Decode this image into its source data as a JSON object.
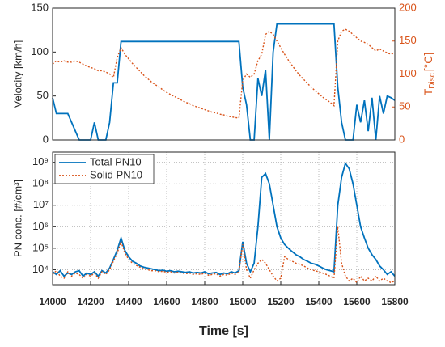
{
  "chart_data": [
    {
      "type": "line",
      "ylabel": "Velocity [km/h]",
      "y2label": "T",
      "y2label_sub": "Disc",
      "y2label_unit": "[°C]",
      "x": [
        14000,
        14020,
        14040,
        14060,
        14080,
        14100,
        14120,
        14140,
        14160,
        14180,
        14200,
        14220,
        14240,
        14260,
        14280,
        14300,
        14320,
        14340,
        14360,
        14380,
        14400,
        14420,
        14440,
        14460,
        14480,
        14500,
        14520,
        14540,
        14560,
        14580,
        14600,
        14620,
        14640,
        14660,
        14680,
        14700,
        14720,
        14740,
        14760,
        14780,
        14800,
        14820,
        14840,
        14860,
        14880,
        14900,
        14920,
        14940,
        14960,
        14980,
        15000,
        15020,
        15040,
        15060,
        15080,
        15100,
        15120,
        15140,
        15160,
        15180,
        15200,
        15220,
        15240,
        15260,
        15280,
        15300,
        15320,
        15340,
        15360,
        15380,
        15400,
        15420,
        15440,
        15460,
        15480,
        15500,
        15520,
        15540,
        15560,
        15580,
        15600,
        15620,
        15640,
        15660,
        15680,
        15700,
        15720,
        15740,
        15760,
        15780,
        15800
      ],
      "xlim": [
        14000,
        15800
      ],
      "ylim": [
        0,
        150
      ],
      "yticks": [
        0,
        50,
        100,
        150
      ],
      "y2lim": [
        0,
        200
      ],
      "y2ticks": [
        0,
        50,
        100,
        150,
        200
      ],
      "grid": false,
      "series": [
        {
          "name": "Velocity",
          "color": "#0072BD",
          "dash": false,
          "values": [
            48,
            30,
            30,
            30,
            30,
            20,
            10,
            0,
            0,
            0,
            0,
            20,
            0,
            0,
            0,
            20,
            65,
            65,
            112,
            112,
            112,
            112,
            112,
            112,
            112,
            112,
            112,
            112,
            112,
            112,
            112,
            112,
            112,
            112,
            112,
            112,
            112,
            112,
            112,
            112,
            112,
            112,
            112,
            112,
            112,
            112,
            112,
            112,
            112,
            112,
            60,
            40,
            0,
            0,
            70,
            50,
            80,
            0,
            100,
            132,
            132,
            132,
            132,
            132,
            132,
            132,
            132,
            132,
            132,
            132,
            132,
            132,
            132,
            132,
            132,
            60,
            20,
            0,
            0,
            0,
            40,
            20,
            45,
            10,
            48,
            0,
            50,
            30,
            50,
            48,
            45
          ]
        },
        {
          "name": "Disc temperature",
          "color": "#D95319",
          "dash": true,
          "axis": "y2",
          "values": [
            115,
            120,
            118,
            120,
            118,
            118,
            120,
            118,
            115,
            112,
            110,
            108,
            105,
            105,
            103,
            100,
            95,
            125,
            140,
            130,
            123,
            116,
            110,
            104,
            98,
            93,
            88,
            84,
            80,
            76,
            72,
            69,
            66,
            63,
            60,
            57,
            55,
            52,
            50,
            48,
            46,
            44,
            42,
            41,
            39,
            38,
            36,
            35,
            34,
            33,
            90,
            100,
            95,
            100,
            120,
            130,
            160,
            165,
            160,
            150,
            140,
            130,
            121,
            113,
            105,
            98,
            92,
            86,
            80,
            75,
            70,
            65,
            61,
            57,
            52,
            150,
            165,
            168,
            165,
            160,
            155,
            150,
            148,
            145,
            140,
            135,
            138,
            135,
            132,
            130,
            132
          ]
        }
      ]
    },
    {
      "type": "line",
      "ylabel": "PN conc. [#/cm³]",
      "xlabel": "Time [s]",
      "x": [
        14000,
        14020,
        14040,
        14060,
        14080,
        14100,
        14120,
        14140,
        14160,
        14180,
        14200,
        14220,
        14240,
        14260,
        14280,
        14300,
        14320,
        14340,
        14360,
        14380,
        14400,
        14420,
        14440,
        14460,
        14480,
        14500,
        14520,
        14540,
        14560,
        14580,
        14600,
        14620,
        14640,
        14660,
        14680,
        14700,
        14720,
        14740,
        14760,
        14780,
        14800,
        14820,
        14840,
        14860,
        14880,
        14900,
        14920,
        14940,
        14960,
        14980,
        15000,
        15020,
        15040,
        15060,
        15080,
        15100,
        15120,
        15140,
        15160,
        15180,
        15200,
        15220,
        15240,
        15260,
        15280,
        15300,
        15320,
        15340,
        15360,
        15380,
        15400,
        15420,
        15440,
        15460,
        15480,
        15500,
        15520,
        15540,
        15560,
        15580,
        15600,
        15620,
        15640,
        15660,
        15680,
        15700,
        15720,
        15740,
        15760,
        15780,
        15800
      ],
      "xlim": [
        14000,
        15800
      ],
      "xticks": [
        14000,
        14200,
        14400,
        14600,
        14800,
        15000,
        15200,
        15400,
        15600,
        15800
      ],
      "ylim": [
        2000,
        3000000000
      ],
      "ylog": true,
      "yticks": [
        {
          "value": 10000,
          "label": "10⁴"
        },
        {
          "value": 100000,
          "label": "10⁵"
        },
        {
          "value": 1000000,
          "label": "10⁶"
        },
        {
          "value": 10000000,
          "label": "10⁷"
        },
        {
          "value": 100000000,
          "label": "10⁸"
        },
        {
          "value": 1000000000,
          "label": "10⁹"
        }
      ],
      "grid": true,
      "legend": "upper left",
      "series": [
        {
          "name": "Total PN10",
          "color": "#0072BD",
          "dash": false,
          "values": [
            8000,
            6000,
            9000,
            5000,
            7000,
            6000,
            8000,
            9000,
            5000,
            7000,
            6000,
            8000,
            5000,
            9000,
            7000,
            12000,
            30000,
            80000,
            300000,
            80000,
            40000,
            25000,
            20000,
            15000,
            13000,
            12000,
            11000,
            10000,
            9000,
            9500,
            8500,
            9000,
            8000,
            8500,
            8000,
            7500,
            8000,
            7000,
            7500,
            7000,
            8000,
            6500,
            7000,
            7500,
            6000,
            7000,
            6500,
            8000,
            7000,
            9000,
            200000,
            20000,
            8000,
            20000,
            1000000,
            200000000,
            300000000,
            100000000,
            10000000,
            1000000,
            300000,
            150000,
            100000,
            70000,
            50000,
            40000,
            30000,
            25000,
            20000,
            18000,
            15000,
            12000,
            10000,
            9000,
            8000,
            10000000,
            200000000,
            900000000,
            500000000,
            100000000,
            10000000,
            1000000,
            300000,
            100000,
            50000,
            30000,
            15000,
            10000,
            6000,
            8000,
            5000
          ]
        },
        {
          "name": "Solid PN10",
          "color": "#D95319",
          "dash": true,
          "values": [
            6000,
            9000,
            5000,
            4000,
            8000,
            5000,
            7000,
            6000,
            4000,
            6000,
            5000,
            7000,
            4000,
            8000,
            6000,
            10000,
            25000,
            60000,
            200000,
            60000,
            30000,
            20000,
            16000,
            13000,
            11000,
            10000,
            9000,
            9000,
            8000,
            8500,
            7500,
            8000,
            7000,
            7500,
            7000,
            6500,
            7000,
            6000,
            6500,
            6000,
            7000,
            5500,
            6000,
            6500,
            5000,
            6000,
            5500,
            7000,
            6000,
            8000,
            150000,
            10000,
            4000,
            10000,
            20000,
            30000,
            20000,
            10000,
            5000,
            3000,
            4000,
            40000,
            30000,
            25000,
            20000,
            18000,
            15000,
            12000,
            10000,
            9000,
            8000,
            7000,
            6000,
            5000,
            4000,
            1000000,
            20000,
            5000,
            3000,
            4000,
            2500,
            5000,
            3000,
            4000,
            3000,
            5000,
            3000,
            4000,
            3000,
            2500,
            3000
          ]
        }
      ]
    }
  ]
}
